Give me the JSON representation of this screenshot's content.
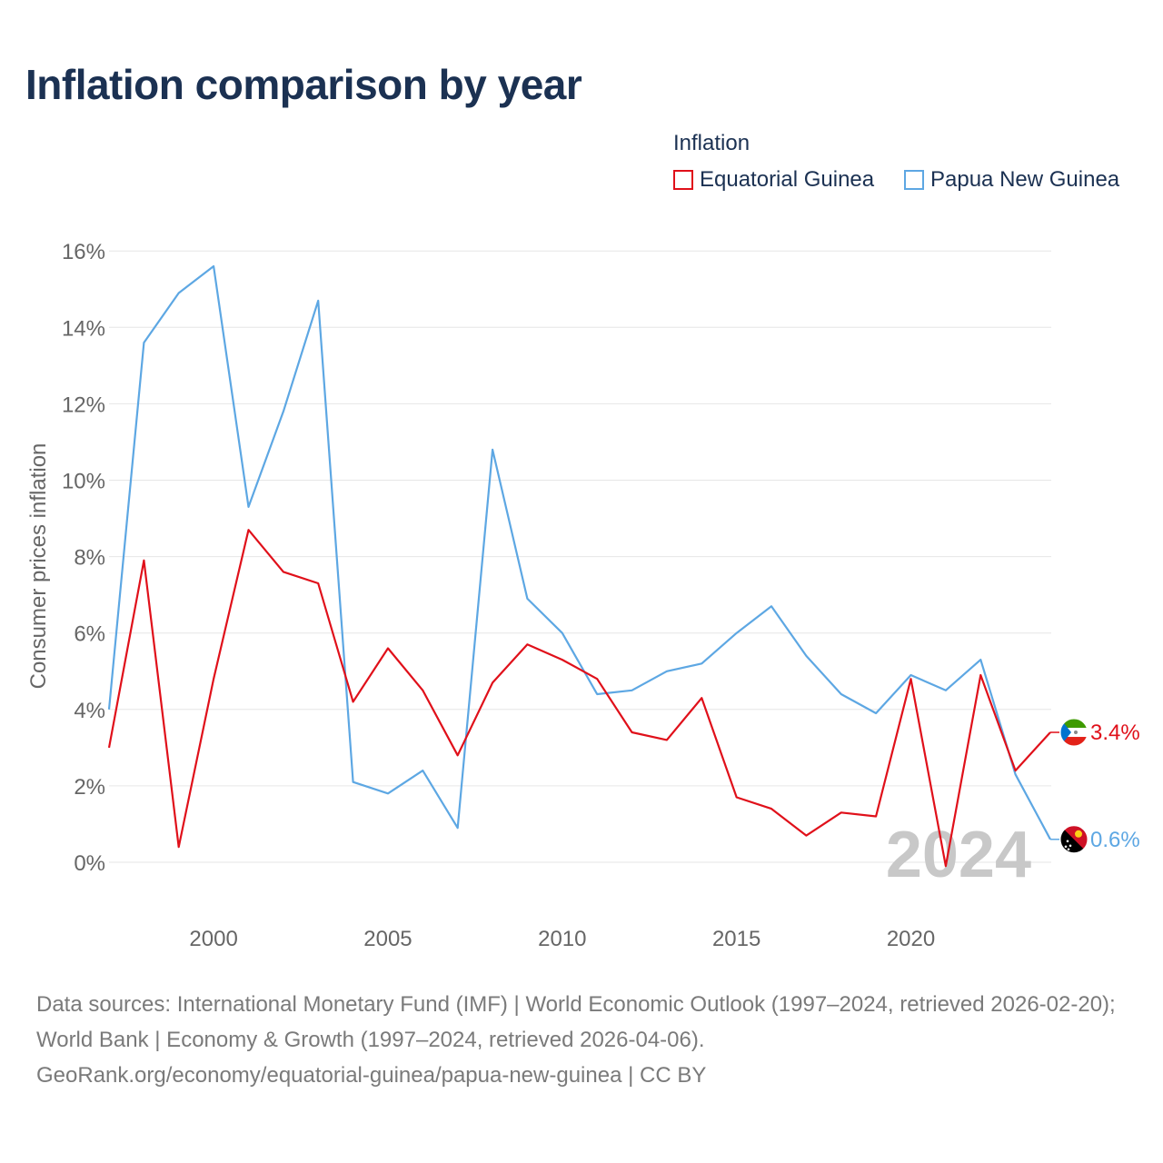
{
  "title": "Inflation comparison by year",
  "legend": {
    "title": "Inflation",
    "items": [
      {
        "label": "Equatorial Guinea",
        "color": "#e0101a"
      },
      {
        "label": "Papua New Guinea",
        "color": "#5da7e3"
      }
    ]
  },
  "chart_data": {
    "type": "line",
    "title": "Inflation comparison by year",
    "xlabel": "",
    "ylabel": "Consumer prices inflation",
    "x": [
      1997,
      1998,
      1999,
      2000,
      2001,
      2002,
      2003,
      2004,
      2005,
      2006,
      2007,
      2008,
      2009,
      2010,
      2011,
      2012,
      2013,
      2014,
      2015,
      2016,
      2017,
      2018,
      2019,
      2020,
      2021,
      2022,
      2023,
      2024
    ],
    "series": [
      {
        "name": "Equatorial Guinea",
        "color": "#e0101a",
        "values": [
          3.0,
          7.9,
          0.4,
          4.8,
          8.7,
          7.6,
          7.3,
          4.2,
          5.6,
          4.5,
          2.8,
          4.7,
          5.7,
          5.3,
          4.8,
          3.4,
          3.2,
          4.3,
          1.7,
          1.4,
          0.7,
          1.3,
          1.2,
          4.8,
          -0.1,
          4.9,
          2.4,
          3.4
        ]
      },
      {
        "name": "Papua New Guinea",
        "color": "#5da7e3",
        "values": [
          4.0,
          13.6,
          14.9,
          15.6,
          9.3,
          11.8,
          14.7,
          2.1,
          1.8,
          2.4,
          0.9,
          10.8,
          6.9,
          6.0,
          4.4,
          4.5,
          5.0,
          5.2,
          6.0,
          6.7,
          5.4,
          4.4,
          3.9,
          4.9,
          4.5,
          5.3,
          2.3,
          0.6
        ]
      }
    ],
    "yticks": [
      0,
      2,
      4,
      6,
      8,
      10,
      12,
      14,
      16
    ],
    "ytick_labels": [
      "0%",
      "2%",
      "4%",
      "6%",
      "8%",
      "10%",
      "12%",
      "14%",
      "16%"
    ],
    "xticks": [
      2000,
      2005,
      2010,
      2015,
      2020
    ],
    "xtick_labels": [
      "2000",
      "2005",
      "2010",
      "2015",
      "2020"
    ],
    "ylim": [
      -1.5,
      16.5
    ],
    "xlim": [
      1997,
      2024
    ],
    "grid": true,
    "end_labels": [
      "3.4%",
      "0.6%"
    ],
    "year_watermark": "2024"
  },
  "sources": {
    "line1": "Data sources: International Monetary Fund (IMF) | World Economic Outlook (1997–2024, retrieved 2026-02-20); World Bank | Economy & Growth (1997–2024, retrieved 2026-04-06).",
    "line2": "GeoRank.org/economy/equatorial-guinea/papua-new-guinea | CC BY"
  }
}
